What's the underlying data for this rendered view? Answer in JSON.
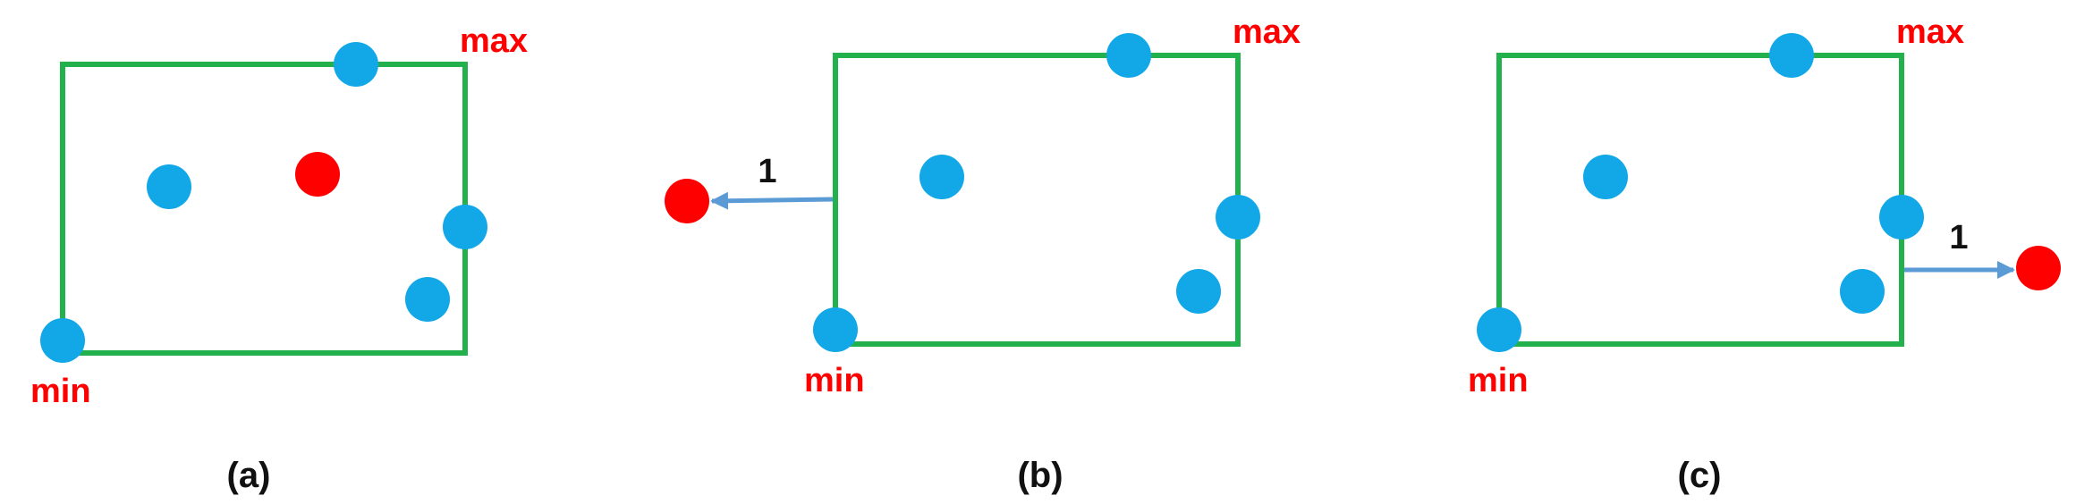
{
  "colors": {
    "box": "#22b14c",
    "point": "#12a8e8",
    "query_point": "#ff0000",
    "arrow": "#5b9bd5",
    "min_max_label": "#ff0000",
    "text": "#111111"
  },
  "panels": [
    {
      "id": "a",
      "caption": "(a)",
      "min_label": "min",
      "max_label": "max",
      "distance_label": "",
      "query_position": "inside box"
    },
    {
      "id": "b",
      "caption": "(b)",
      "min_label": "min",
      "max_label": "max",
      "distance_label": "1",
      "query_position": "outside box, left"
    },
    {
      "id": "c",
      "caption": "(c)",
      "min_label": "min",
      "max_label": "max",
      "distance_label": "1",
      "query_position": "outside box, right"
    }
  ]
}
